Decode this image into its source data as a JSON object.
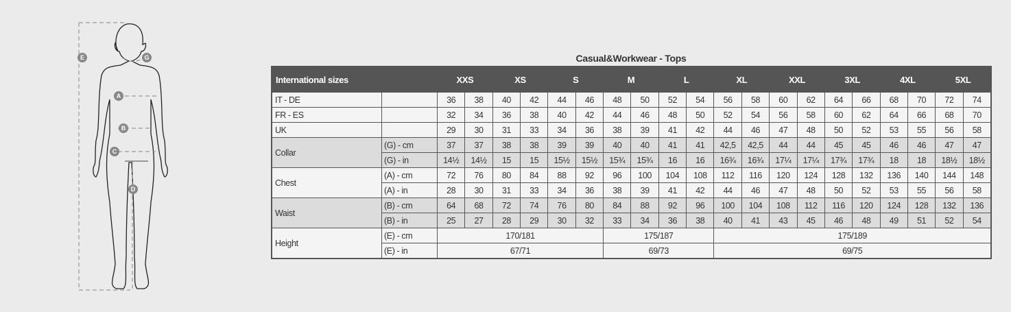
{
  "figure": {
    "labels": [
      "E",
      "G",
      "A",
      "B",
      "C",
      "D"
    ]
  },
  "title": "Casual&Workwear - Tops",
  "header": {
    "first": "International sizes",
    "sizes": [
      "XXS",
      "XS",
      "S",
      "M",
      "L",
      "XL",
      "XXL",
      "3XL",
      "4XL",
      "5XL"
    ]
  },
  "rows": [
    {
      "group": "IT - DE",
      "sub": "",
      "shade": "light",
      "values": [
        "36",
        "38",
        "40",
        "42",
        "44",
        "46",
        "48",
        "50",
        "52",
        "54",
        "56",
        "58",
        "60",
        "62",
        "64",
        "66",
        "68",
        "70",
        "72",
        "74"
      ]
    },
    {
      "group": "FR - ES",
      "sub": "",
      "shade": "light",
      "values": [
        "32",
        "34",
        "36",
        "38",
        "40",
        "42",
        "44",
        "46",
        "48",
        "50",
        "52",
        "54",
        "56",
        "58",
        "60",
        "62",
        "64",
        "66",
        "68",
        "70"
      ]
    },
    {
      "group": "UK",
      "sub": "",
      "shade": "light",
      "values": [
        "29",
        "30",
        "31",
        "33",
        "34",
        "36",
        "38",
        "39",
        "41",
        "42",
        "44",
        "46",
        "47",
        "48",
        "50",
        "52",
        "53",
        "55",
        "56",
        "58"
      ]
    },
    {
      "group": "Collar",
      "sub": "(G) - cm",
      "shade": "dark",
      "values": [
        "37",
        "37",
        "38",
        "38",
        "39",
        "39",
        "40",
        "40",
        "41",
        "41",
        "42,5",
        "42,5",
        "44",
        "44",
        "45",
        "45",
        "46",
        "46",
        "47",
        "47"
      ]
    },
    {
      "group": "",
      "sub": "(G)  - in",
      "shade": "dark",
      "values": [
        "14½",
        "14½",
        "15",
        "15",
        "15½",
        "15½",
        "15¾",
        "15¾",
        "16",
        "16",
        "16¾",
        "16¾",
        "17¼",
        "17¼",
        "17¾",
        "17¾",
        "18",
        "18",
        "18½",
        "18½"
      ]
    },
    {
      "group": "Chest",
      "sub": "(A) - cm",
      "shade": "light",
      "values": [
        "72",
        "76",
        "80",
        "84",
        "88",
        "92",
        "96",
        "100",
        "104",
        "108",
        "112",
        "116",
        "120",
        "124",
        "128",
        "132",
        "136",
        "140",
        "144",
        "148"
      ]
    },
    {
      "group": "",
      "sub": "(A) - in",
      "shade": "light",
      "values": [
        "28",
        "30",
        "31",
        "33",
        "34",
        "36",
        "38",
        "39",
        "41",
        "42",
        "44",
        "46",
        "47",
        "48",
        "50",
        "52",
        "53",
        "55",
        "56",
        "58"
      ]
    },
    {
      "group": "Waist",
      "sub": "(B) - cm",
      "shade": "dark",
      "values": [
        "64",
        "68",
        "72",
        "74",
        "76",
        "80",
        "84",
        "88",
        "92",
        "96",
        "100",
        "104",
        "108",
        "112",
        "116",
        "120",
        "124",
        "128",
        "132",
        "136"
      ]
    },
    {
      "group": "",
      "sub": "(B) - in",
      "shade": "dark",
      "values": [
        "25",
        "27",
        "28",
        "29",
        "30",
        "32",
        "33",
        "34",
        "36",
        "38",
        "40",
        "41",
        "43",
        "45",
        "46",
        "48",
        "49",
        "51",
        "52",
        "54"
      ]
    },
    {
      "group": "Height",
      "sub": "(E) - cm",
      "shade": "light",
      "spans": [
        6,
        4,
        10
      ],
      "values": [
        "170/181",
        "175/187",
        "175/189"
      ]
    },
    {
      "group": "",
      "sub": "(E) - in",
      "shade": "light",
      "spans": [
        6,
        4,
        10
      ],
      "values": [
        "67/71",
        "69/73",
        "69/75"
      ]
    }
  ]
}
